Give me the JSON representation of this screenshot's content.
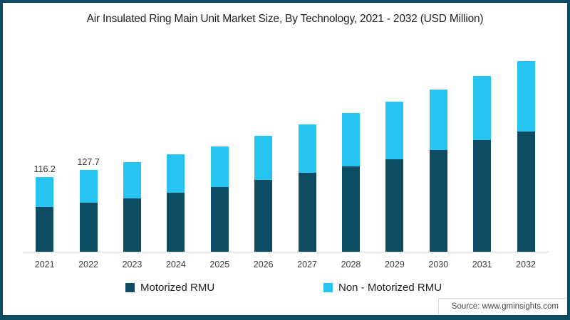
{
  "title": "Air Insulated Ring Main Unit Market Size, By Technology, 2021 - 2032 (USD Million)",
  "source": "Source: www.gminsights.com",
  "frame": {
    "border_color": "#0e4c63",
    "background": "#ffffff"
  },
  "legend": [
    {
      "label": "Motorized RMU",
      "color": "#0e4c63"
    },
    {
      "label": "Non - Motorized RMU",
      "color": "#27c3f1"
    }
  ],
  "chart_data": {
    "type": "bar",
    "stacked": true,
    "title": "Air Insulated Ring Main Unit Market Size, By Technology, 2021 - 2032 (USD Million)",
    "xlabel": "",
    "ylabel": "",
    "grid": false,
    "legend_position": "bottom",
    "axis_line_color": "#d9d9d9",
    "categories": [
      2021,
      2022,
      2023,
      2024,
      2025,
      2026,
      2027,
      2028,
      2029,
      2030,
      2031,
      2032
    ],
    "series": [
      {
        "name": "Motorized RMU",
        "color": "#0e4c63",
        "values": [
          70.0,
          76.5,
          83.8,
          91.9,
          101.2,
          111.9,
          123.4,
          133.0,
          144.3,
          158.7,
          174.3,
          188.1
        ]
      },
      {
        "name": "Non - Motorized RMU",
        "color": "#27c3f1",
        "values": [
          46.2,
          51.2,
          56.3,
          60.7,
          63.6,
          69.3,
          75.1,
          83.7,
          90.1,
          94.2,
          99.9,
          109.4
        ]
      }
    ],
    "totals": [
      116.2,
      127.7,
      140.1,
      152.6,
      164.8,
      181.2,
      198.5,
      216.7,
      234.4,
      252.9,
      274.2,
      297.5
    ],
    "data_labels": {
      "2021": "116.2",
      "2022": "127.7"
    }
  }
}
